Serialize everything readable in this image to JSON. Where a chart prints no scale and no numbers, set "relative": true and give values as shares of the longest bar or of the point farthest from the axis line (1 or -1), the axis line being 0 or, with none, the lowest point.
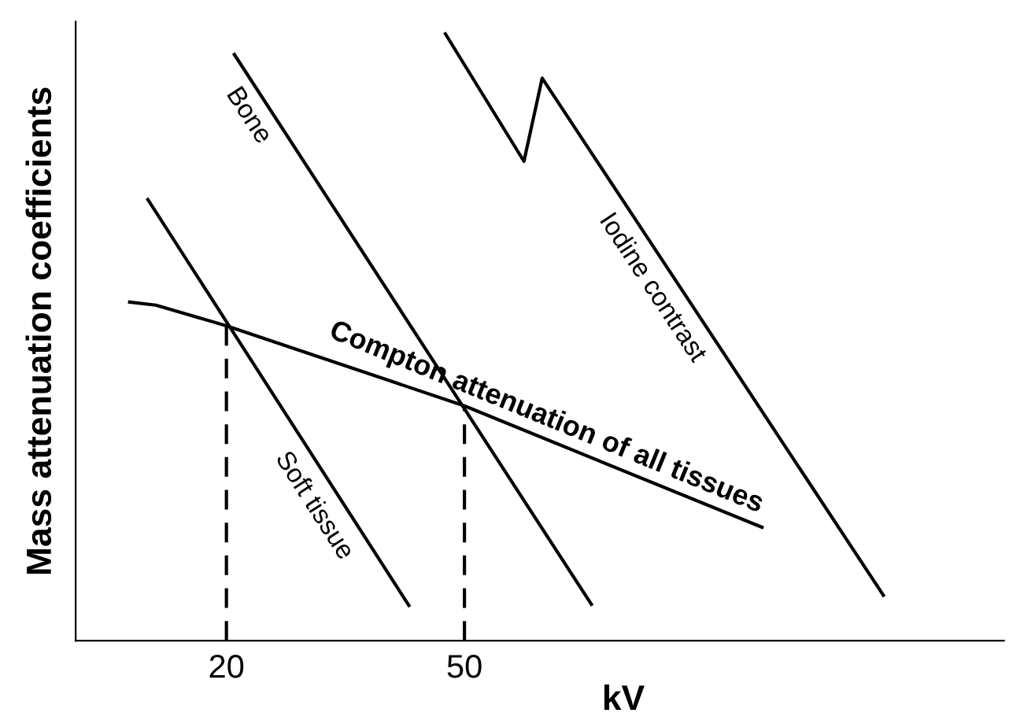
{
  "chart_data": {
    "type": "line",
    "relative": true,
    "xlabel": "kV",
    "ylabel": "Mass attenuation coefficients",
    "xlim": [
      1,
      118
    ],
    "xticks": [
      20,
      50
    ],
    "grid": false,
    "legend": false,
    "marker": "none",
    "series": [
      {
        "name": "Soft tissue",
        "color": "#000000",
        "x": [
          10.1,
          43.0
        ],
        "values": [
          0.727,
          0.058
        ]
      },
      {
        "name": "Bone",
        "color": "#000000",
        "x": [
          21.0,
          66.0
        ],
        "values": [
          0.966,
          0.06
        ]
      },
      {
        "name": "Iodine contrast",
        "color": "#000000",
        "x": [
          47.6,
          57.5,
          59.8,
          102.8
        ],
        "values": [
          1.0,
          0.79,
          0.927,
          0.075
        ]
      },
      {
        "name": "Compton attenuation of all tissues",
        "color": "#000000",
        "x": [
          7.8,
          11.1,
          15,
          20,
          50,
          87.5
        ],
        "values": [
          0.558,
          0.553,
          0.538,
          0.519,
          0.387,
          0.187
        ]
      },
      {
        "color": "#000000",
        "line_style": "dashed",
        "x": [
          20,
          20
        ],
        "values": [
          0,
          0.519
        ]
      },
      {
        "color": "#000000",
        "line_style": "dashed",
        "x": [
          50,
          50
        ],
        "values": [
          0,
          0.387
        ]
      }
    ]
  }
}
